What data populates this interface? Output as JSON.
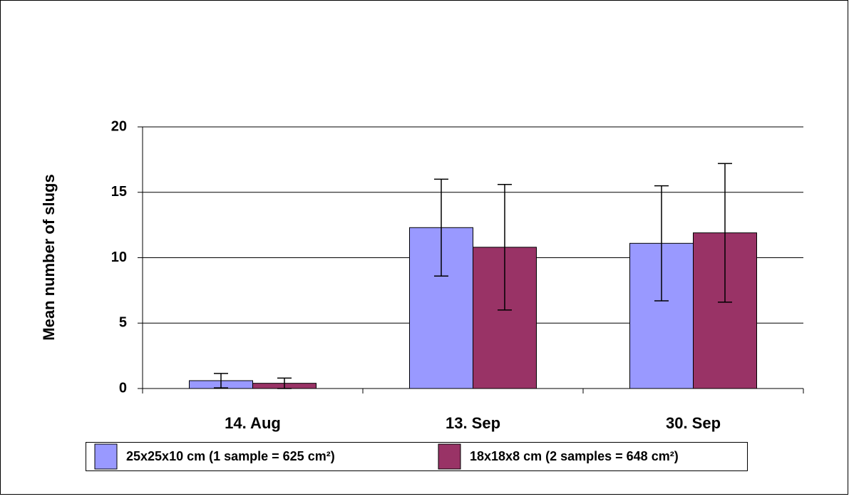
{
  "chart_data": {
    "type": "bar",
    "y_label": "Mean number of slugs",
    "categories": [
      "14. Aug",
      "13. Sep",
      "30. Sep"
    ],
    "series": [
      {
        "name": "25x25x10 cm (1 sample = 625 cm²)",
        "color": "#9999ff",
        "values": [
          0.6,
          12.3,
          11.1
        ],
        "errors": [
          0.55,
          3.7,
          4.4
        ]
      },
      {
        "name": "18x18x8 cm (2 samples = 648 cm²)",
        "color": "#993366",
        "values": [
          0.4,
          10.8,
          11.9
        ],
        "errors": [
          0.4,
          4.8,
          5.3
        ]
      }
    ],
    "ylim": [
      0,
      20
    ],
    "yticks": [
      0,
      5,
      10,
      15,
      20
    ],
    "grid": true
  }
}
